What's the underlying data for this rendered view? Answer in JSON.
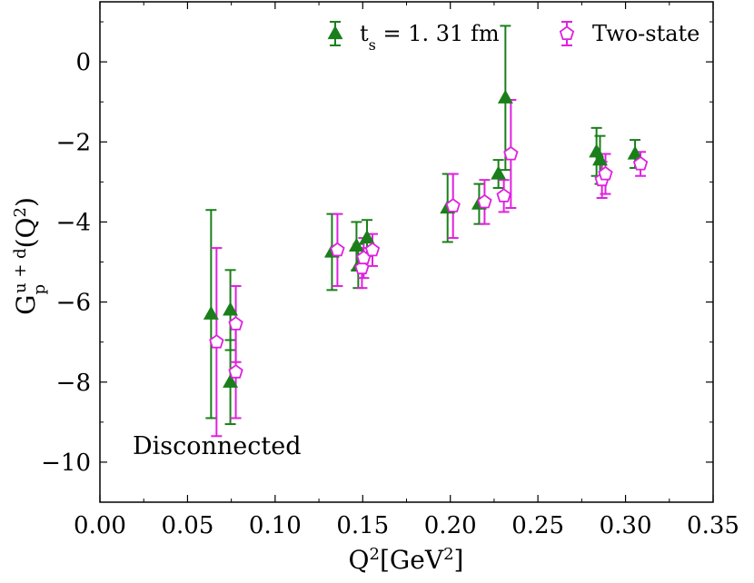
{
  "chart_data": {
    "type": "scatter",
    "title": "",
    "xlabel_base": "Q",
    "xlabel_sup": "2",
    "xlabel_unit": "[GeV",
    "xlabel_unit_sup": "2",
    "xlabel_close": "]",
    "ylabel_base": "G",
    "ylabel_sub": "p",
    "ylabel_sup": "u + d",
    "ylabel_arg": "(Q",
    "ylabel_arg_sup": "2",
    "ylabel_close": ")",
    "xlim": [
      0.0,
      0.35
    ],
    "ylim": [
      -11,
      1.5
    ],
    "xticks": [
      "0.00",
      "0.05",
      "0.10",
      "0.15",
      "0.20",
      "0.25",
      "0.30",
      "0.35"
    ],
    "yticks": [
      "0",
      "−2",
      "−4",
      "−6",
      "−8",
      "−10"
    ],
    "annotation": "Disconnected",
    "series": [
      {
        "name": "t_s = 1. 31 fm",
        "legend_main": "t",
        "legend_sub": "s",
        "legend_rest": " = 1. 31 fm",
        "color": "#1a7f1a",
        "marker": "triangle",
        "points": [
          {
            "x": 0.065,
            "y": -6.3,
            "err": 2.6
          },
          {
            "x": 0.076,
            "y": -6.2,
            "err": 1.0
          },
          {
            "x": 0.076,
            "y": -8.0,
            "err": 1.05
          },
          {
            "x": 0.134,
            "y": -4.75,
            "err": 0.95
          },
          {
            "x": 0.148,
            "y": -4.6,
            "err": 0.6
          },
          {
            "x": 0.149,
            "y": -5.1,
            "err": 0.55
          },
          {
            "x": 0.154,
            "y": -4.4,
            "err": 0.45
          },
          {
            "x": 0.2,
            "y": -3.65,
            "err": 0.85
          },
          {
            "x": 0.218,
            "y": -3.55,
            "err": 0.5
          },
          {
            "x": 0.229,
            "y": -2.8,
            "err": 0.35
          },
          {
            "x": 0.233,
            "y": -0.9,
            "err": 1.8
          },
          {
            "x": 0.285,
            "y": -2.25,
            "err": 0.6
          },
          {
            "x": 0.287,
            "y": -2.45,
            "err": 0.6
          },
          {
            "x": 0.307,
            "y": -2.3,
            "err": 0.35
          }
        ]
      },
      {
        "name": "Two-state",
        "legend_main": "Two-state",
        "legend_sub": "",
        "legend_rest": "",
        "color": "#e020e0",
        "marker": "pentagon",
        "points": [
          {
            "x": 0.065,
            "y": -7.0,
            "err": 2.35
          },
          {
            "x": 0.076,
            "y": -6.55,
            "err": 0.95
          },
          {
            "x": 0.076,
            "y": -7.75,
            "err": 1.15
          },
          {
            "x": 0.134,
            "y": -4.7,
            "err": 0.9
          },
          {
            "x": 0.148,
            "y": -5.15,
            "err": 0.5
          },
          {
            "x": 0.149,
            "y": -4.9,
            "err": 0.5
          },
          {
            "x": 0.154,
            "y": -4.7,
            "err": 0.4
          },
          {
            "x": 0.2,
            "y": -3.6,
            "err": 0.8
          },
          {
            "x": 0.218,
            "y": -3.5,
            "err": 0.55
          },
          {
            "x": 0.229,
            "y": -3.35,
            "err": 0.4
          },
          {
            "x": 0.233,
            "y": -2.3,
            "err": 1.35
          },
          {
            "x": 0.285,
            "y": -2.95,
            "err": 0.45
          },
          {
            "x": 0.287,
            "y": -2.8,
            "err": 0.5
          },
          {
            "x": 0.307,
            "y": -2.55,
            "err": 0.3
          }
        ]
      }
    ]
  }
}
